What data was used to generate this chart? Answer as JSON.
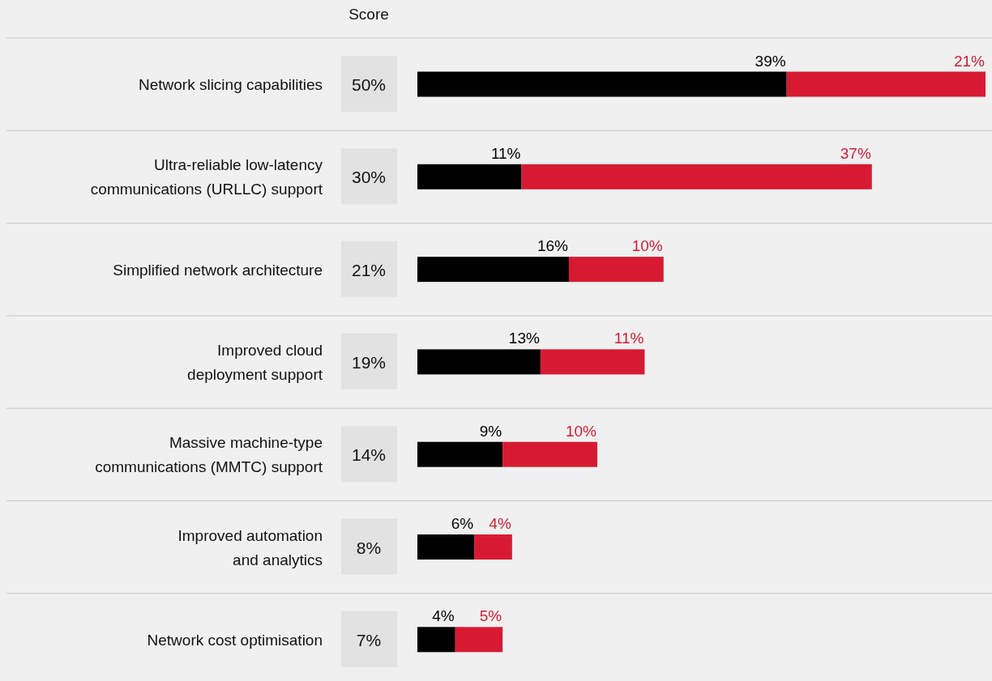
{
  "chart_data": {
    "type": "bar",
    "orientation": "horizontal",
    "stacked": true,
    "categories": [
      "Network slicing capabilities",
      "Ultra-reliable low-latency communications (URLLC) support",
      "Simplified network architecture",
      "Improved cloud deployment support",
      "Massive machine-type communications (MMTC) support",
      "Improved automation and analytics",
      "Network cost optimisation"
    ],
    "series": [
      {
        "color": "#000000",
        "values": [
          39,
          11,
          16,
          13,
          9,
          6,
          4
        ],
        "value_labels": [
          "39%",
          "11%",
          "16%",
          "13%",
          "9%",
          "6%",
          "4%"
        ]
      },
      {
        "color": "#d71a32",
        "values": [
          21,
          37,
          10,
          11,
          10,
          4,
          5
        ],
        "value_labels": [
          "21%",
          "37%",
          "10%",
          "11%",
          "10%",
          "4%",
          "5%"
        ]
      }
    ],
    "annotations": [
      "Score",
      "50%",
      "30%",
      "21%",
      "19%",
      "14%",
      "8%",
      "7%"
    ]
  }
}
